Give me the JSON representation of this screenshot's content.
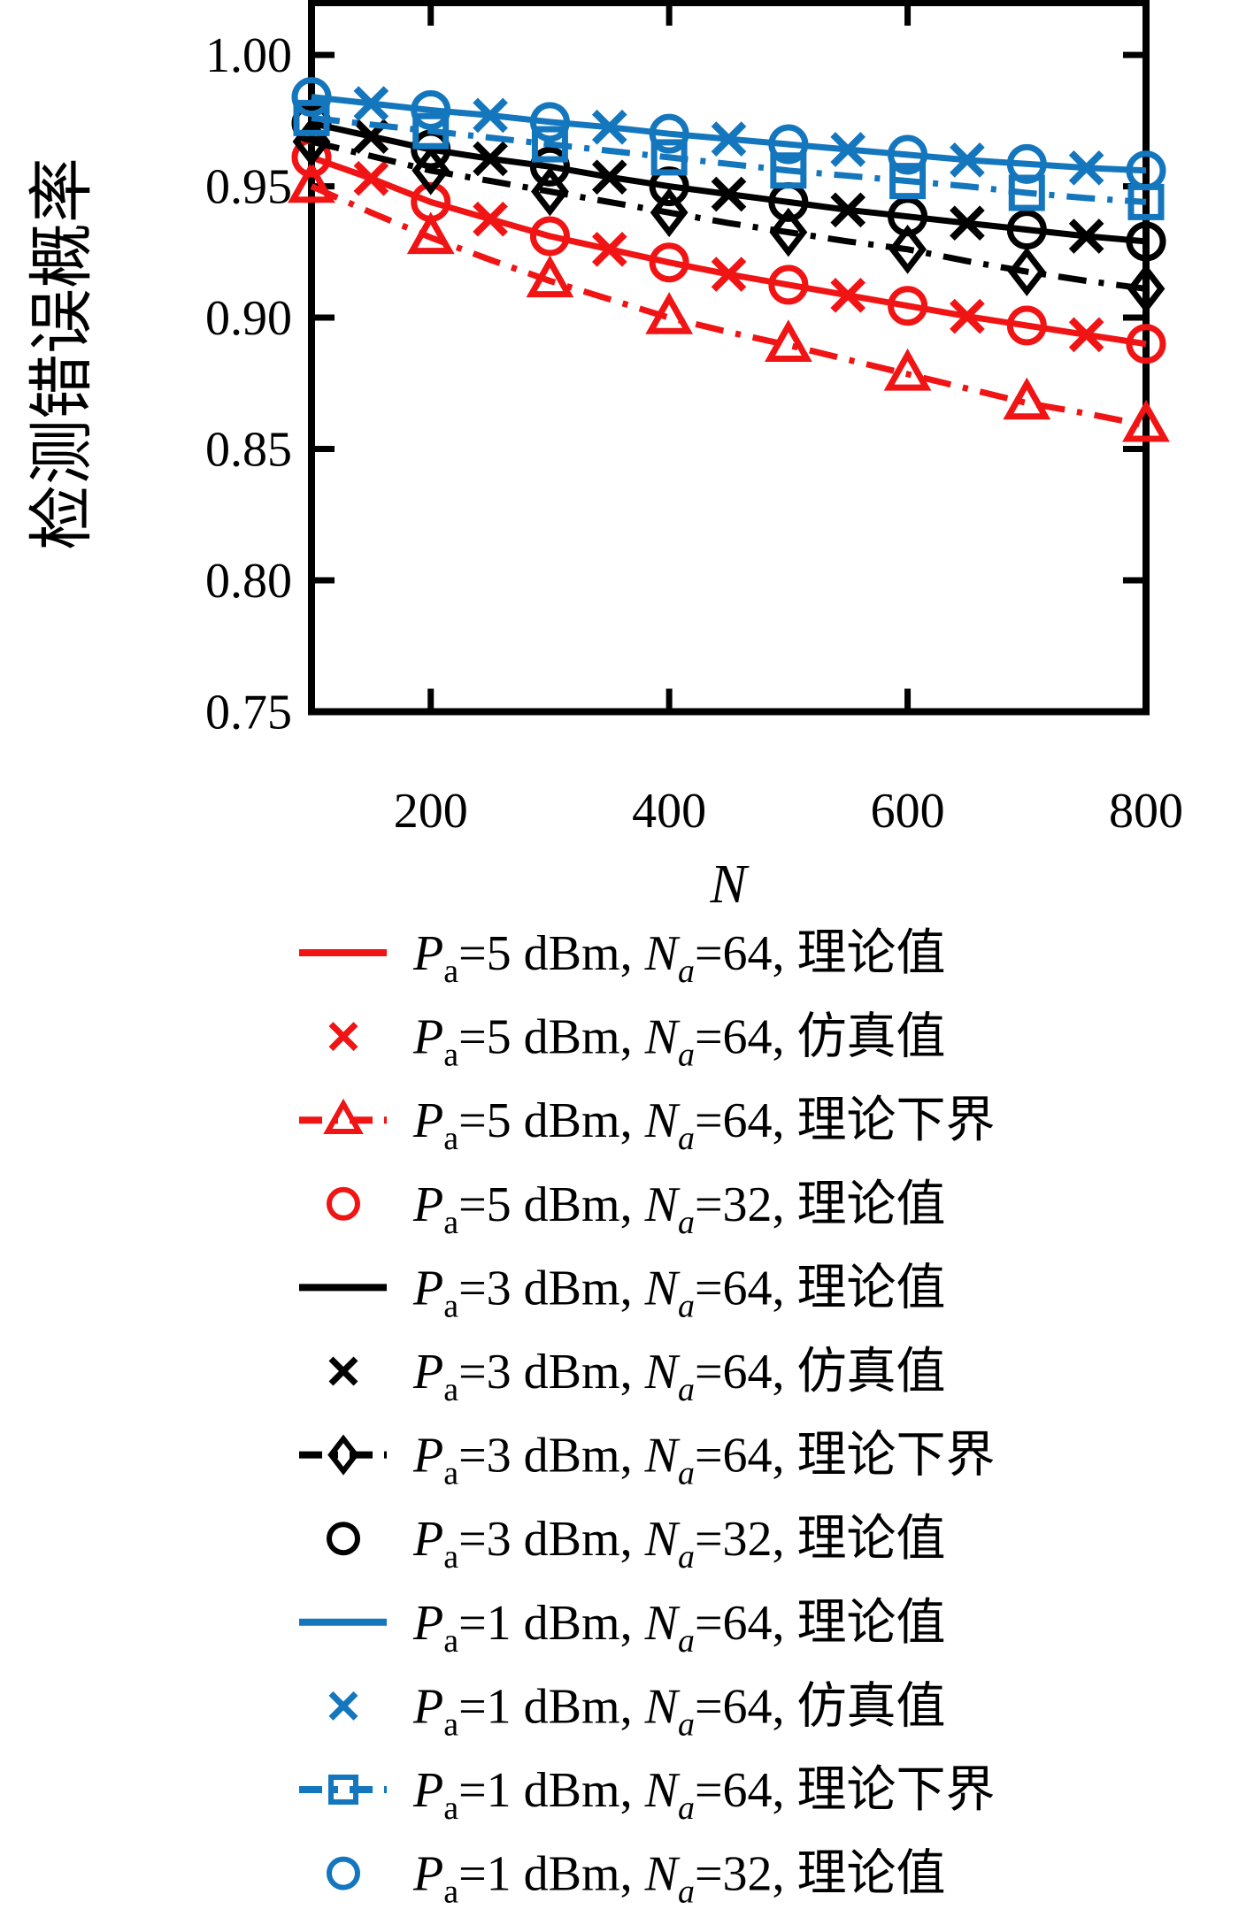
{
  "chart_data": {
    "type": "line",
    "title": "",
    "xlabel": "N",
    "ylabel": "检测错误概率",
    "xlim": [
      100,
      800
    ],
    "ylim": [
      0.75,
      1.0199
    ],
    "grid": false,
    "legend_position": "below",
    "x_ticks": {
      "values": [
        200,
        400,
        600,
        800
      ],
      "labels": [
        "200",
        "400",
        "600",
        "800"
      ]
    },
    "y_ticks": {
      "values": [
        1.0,
        0.95,
        0.9,
        0.85,
        0.8,
        0.75
      ],
      "labels": [
        "1.00",
        "0.95",
        "0.90",
        "0.85",
        "0.80",
        "0.75"
      ]
    },
    "x_line": [
      100,
      150,
      200,
      250,
      300,
      350,
      400,
      450,
      500,
      550,
      600,
      650,
      700,
      750,
      800
    ],
    "x_sim": [
      150,
      250,
      350,
      450,
      550,
      650,
      750
    ],
    "x_markers": [
      100,
      200,
      300,
      400,
      500,
      600,
      700,
      800
    ],
    "colors": {
      "red": "#f01414",
      "black": "#000000",
      "blue": "#1476bd"
    },
    "series": [
      {
        "id": "pa5-na64-theory",
        "color": "red",
        "line": "solid",
        "marker": "none",
        "x_key": "x_line",
        "values": [
          0.961,
          0.953,
          0.944,
          0.9375,
          0.931,
          0.926,
          0.921,
          0.9165,
          0.9125,
          0.9085,
          0.9045,
          0.9005,
          0.897,
          0.8935,
          0.89
        ],
        "legend": {
          "pa": "5",
          "na": "64",
          "kind": "理论值"
        }
      },
      {
        "id": "pa5-na64-sim",
        "color": "red",
        "line": "none",
        "marker": "x",
        "x_key": "x_sim",
        "values": [
          0.953,
          0.9375,
          0.926,
          0.9165,
          0.9085,
          0.9005,
          0.8935
        ],
        "legend": {
          "pa": "5",
          "na": "64",
          "kind": "仿真值"
        }
      },
      {
        "id": "pa5-na64-lower",
        "color": "red",
        "line": "dashdot",
        "marker": "triangle",
        "x_key": "x_line",
        "marker_every": 2,
        "values": [
          0.95,
          0.94,
          0.9305,
          0.922,
          0.914,
          0.907,
          0.9,
          0.8945,
          0.8895,
          0.884,
          0.8785,
          0.873,
          0.8675,
          0.8635,
          0.859
        ],
        "legend": {
          "pa": "5",
          "na": "64",
          "kind": "理论下界"
        }
      },
      {
        "id": "pa5-na32-theory",
        "color": "red",
        "line": "none",
        "marker": "circle",
        "x_key": "x_markers",
        "values": [
          0.961,
          0.944,
          0.931,
          0.921,
          0.9125,
          0.9045,
          0.897,
          0.89
        ],
        "legend": {
          "pa": "5",
          "na": "32",
          "kind": "理论值"
        }
      },
      {
        "id": "pa3-na64-theory",
        "color": "black",
        "line": "solid",
        "marker": "none",
        "x_key": "x_line",
        "values": [
          0.974,
          0.969,
          0.964,
          0.9605,
          0.9575,
          0.9535,
          0.95,
          0.947,
          0.944,
          0.941,
          0.9385,
          0.936,
          0.9335,
          0.931,
          0.929
        ],
        "legend": {
          "pa": "3",
          "na": "64",
          "kind": "理论值"
        }
      },
      {
        "id": "pa3-na64-sim",
        "color": "black",
        "line": "none",
        "marker": "x",
        "x_key": "x_sim",
        "values": [
          0.969,
          0.9605,
          0.9535,
          0.947,
          0.941,
          0.936,
          0.931
        ],
        "legend": {
          "pa": "3",
          "na": "64",
          "kind": "仿真值"
        }
      },
      {
        "id": "pa3-na64-lower",
        "color": "black",
        "line": "dashdot",
        "marker": "diamond",
        "x_key": "x_line",
        "marker_every": 2,
        "values": [
          0.967,
          0.9615,
          0.956,
          0.952,
          0.948,
          0.944,
          0.94,
          0.936,
          0.9325,
          0.929,
          0.926,
          0.9215,
          0.9175,
          0.914,
          0.911
        ],
        "legend": {
          "pa": "3",
          "na": "64",
          "kind": "理论下界"
        }
      },
      {
        "id": "pa3-na32-theory",
        "color": "black",
        "line": "none",
        "marker": "circle",
        "x_key": "x_markers",
        "values": [
          0.974,
          0.964,
          0.9575,
          0.95,
          0.944,
          0.9385,
          0.9335,
          0.929
        ],
        "legend": {
          "pa": "3",
          "na": "32",
          "kind": "理论值"
        }
      },
      {
        "id": "pa1-na64-theory",
        "color": "blue",
        "line": "solid",
        "marker": "none",
        "x_key": "x_line",
        "values": [
          0.984,
          0.9815,
          0.979,
          0.977,
          0.9745,
          0.9725,
          0.97,
          0.968,
          0.966,
          0.964,
          0.962,
          0.96,
          0.9585,
          0.957,
          0.956
        ],
        "legend": {
          "pa": "1",
          "na": "64",
          "kind": "理论值"
        }
      },
      {
        "id": "pa1-na64-sim",
        "color": "blue",
        "line": "none",
        "marker": "x",
        "x_key": "x_sim",
        "values": [
          0.9815,
          0.977,
          0.9725,
          0.968,
          0.964,
          0.96,
          0.957
        ],
        "legend": {
          "pa": "1",
          "na": "64",
          "kind": "仿真值"
        }
      },
      {
        "id": "pa1-na64-lower",
        "color": "blue",
        "line": "dashdot",
        "marker": "square",
        "x_key": "x_line",
        "marker_every": 2,
        "values": [
          0.976,
          0.9735,
          0.971,
          0.9685,
          0.966,
          0.9635,
          0.961,
          0.9585,
          0.956,
          0.954,
          0.952,
          0.95,
          0.9475,
          0.9455,
          0.944
        ],
        "legend": {
          "pa": "1",
          "na": "64",
          "kind": "理论下界"
        }
      },
      {
        "id": "pa1-na32-theory",
        "color": "blue",
        "line": "none",
        "marker": "circle",
        "x_key": "x_markers",
        "values": [
          0.984,
          0.979,
          0.9745,
          0.97,
          0.966,
          0.962,
          0.9585,
          0.956
        ],
        "legend": {
          "pa": "1",
          "na": "32",
          "kind": "理论值"
        }
      }
    ],
    "legend_text": {
      "p_symbol": "P",
      "p_sub": "a",
      "n_symbol": "N",
      "n_sub": "a",
      "unit": "dBm"
    }
  }
}
